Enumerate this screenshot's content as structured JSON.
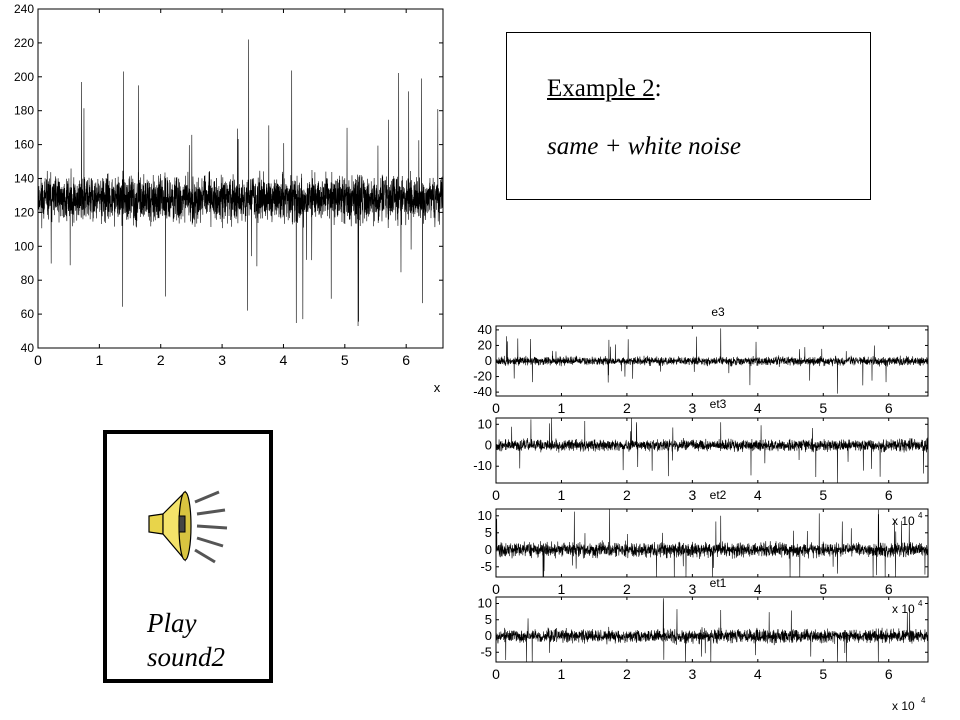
{
  "info_box": {
    "title": "Example 2",
    "title_colon": ":",
    "subtitle": "same  +  white noise"
  },
  "play": {
    "icon": "speaker-icon",
    "label_line1": "Play",
    "label_line2": "sound2"
  },
  "chart_data": [
    {
      "type": "line",
      "title": "",
      "xlabel": "x",
      "ylabel": "",
      "xlim": [
        0,
        6.6
      ],
      "ylim": [
        40,
        240
      ],
      "xticks": [
        "0",
        "1",
        "2",
        "3",
        "4",
        "5",
        "6"
      ],
      "yticks": [
        "40",
        "60",
        "80",
        "100",
        "120",
        "140",
        "160",
        "180",
        "200",
        "220",
        "240"
      ],
      "series": [
        {
          "signal": "noisy",
          "mean": 128,
          "band": [
            110,
            148
          ],
          "peak_max": 222,
          "peak_min": 53
        }
      ],
      "color": "#000000"
    },
    {
      "type": "line",
      "title": "e3",
      "xlim": [
        0,
        6.6
      ],
      "ylim": [
        -45,
        45
      ],
      "xticks": [
        "0",
        "1",
        "2",
        "3",
        "4",
        "5",
        "6"
      ],
      "yticks": [
        "40",
        "20",
        "0",
        "-20",
        "-40"
      ],
      "series": [
        {
          "mean": 0,
          "band": [
            -8,
            8
          ],
          "peak_max": 42,
          "peak_min": -42
        }
      ]
    },
    {
      "type": "line",
      "title": "et3",
      "xlim": [
        0,
        6.6
      ],
      "ylim": [
        -18,
        13
      ],
      "xticks": [
        "0",
        "1",
        "2",
        "3",
        "4",
        "5",
        "6"
      ],
      "yticks": [
        "10",
        "0",
        "-10"
      ],
      "series": [
        {
          "mean": 0,
          "band": [
            -4,
            4
          ],
          "peak_max": 11,
          "peak_min": -18
        }
      ]
    },
    {
      "type": "line",
      "title": "et2",
      "xlim": [
        0,
        6.6
      ],
      "ylim": [
        -8,
        12
      ],
      "xticks": [
        "0",
        "1",
        "2",
        "3",
        "4",
        "5",
        "6"
      ],
      "yticks": [
        "10",
        "5",
        "0",
        "-5"
      ],
      "scale_label": "x 10",
      "scale_exp": "4",
      "series": [
        {
          "mean": 0,
          "band": [
            -3,
            3
          ],
          "peak_max": 10,
          "peak_min": -7
        }
      ]
    },
    {
      "type": "line",
      "title": "et1",
      "xlim": [
        0,
        6.6
      ],
      "ylim": [
        -8,
        12
      ],
      "xticks": [
        "0",
        "1",
        "2",
        "3",
        "4",
        "5",
        "6"
      ],
      "yticks": [
        "10",
        "5",
        "0",
        "-5"
      ],
      "scale_label": "x 10",
      "scale_exp": "4",
      "x_scale_label": "x 10",
      "x_scale_exp": "4",
      "series": [
        {
          "mean": 0,
          "band": [
            -3,
            3
          ],
          "peak_max": 8,
          "peak_min": -8
        }
      ]
    }
  ]
}
